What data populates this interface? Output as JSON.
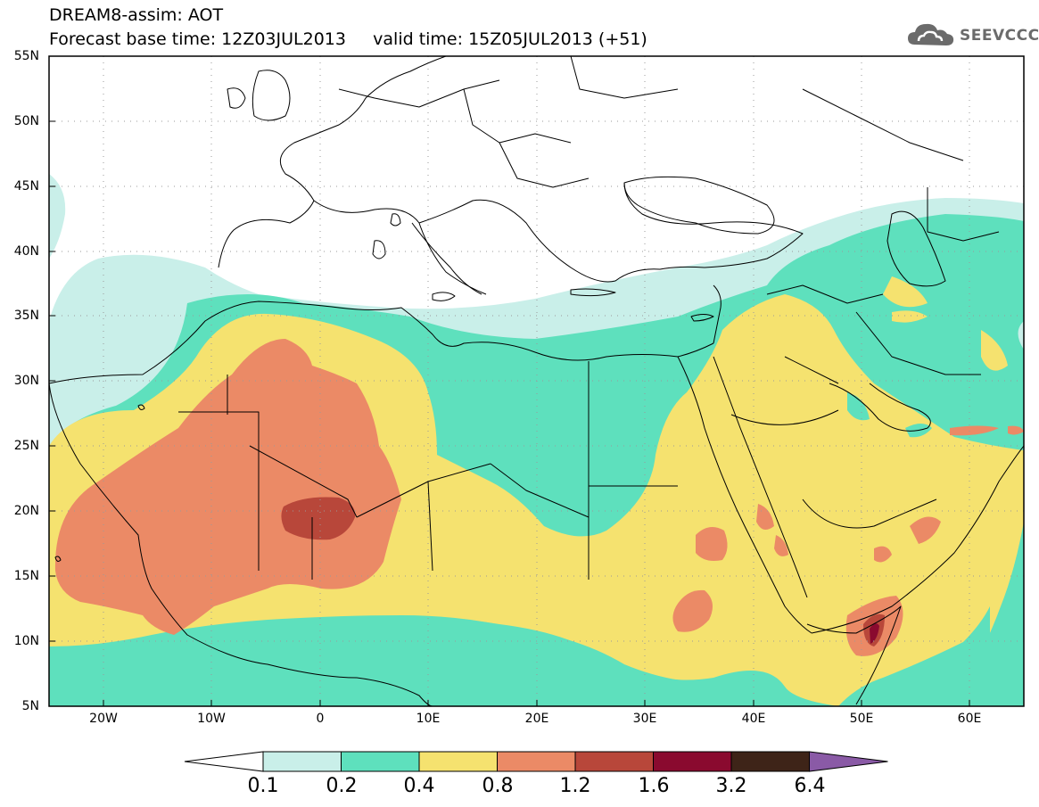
{
  "header": {
    "line1": "DREAM8-assim: AOT",
    "line2": "Forecast base time: 12Z03JUL2013     valid time: 15Z05JUL2013 (+51)",
    "logo_text": "SEEVCCC",
    "logo_icon": "cloud-icon"
  },
  "map": {
    "product": "Aerosol optical thickness forecast",
    "region_lon": [
      -25,
      65
    ],
    "region_lat": [
      5,
      55
    ],
    "lat_labels": [
      "55N",
      "50N",
      "45N",
      "40N",
      "35N",
      "30N",
      "25N",
      "20N",
      "15N",
      "10N",
      "5N"
    ],
    "lon_labels": [
      "20W",
      "10W",
      "0",
      "10E",
      "20E",
      "30E",
      "40E",
      "50E",
      "60E"
    ]
  },
  "legend": {
    "labels": [
      "0.1",
      "0.2",
      "0.4",
      "0.8",
      "1.2",
      "1.6",
      "3.2",
      "6.4"
    ],
    "colors": [
      "#ffffff",
      "#c9efe9",
      "#5ee0bd",
      "#f5e26f",
      "#eb8a66",
      "#b8473a",
      "#8a0a2f",
      "#3e2418",
      "#8a5aa6"
    ]
  },
  "colors": {
    "level1": "#c9efe9",
    "level2": "#5ee0bd",
    "level3": "#f5e26f",
    "level4": "#eb8a66",
    "level5": "#b8473a",
    "level6": "#8a0a2f"
  }
}
